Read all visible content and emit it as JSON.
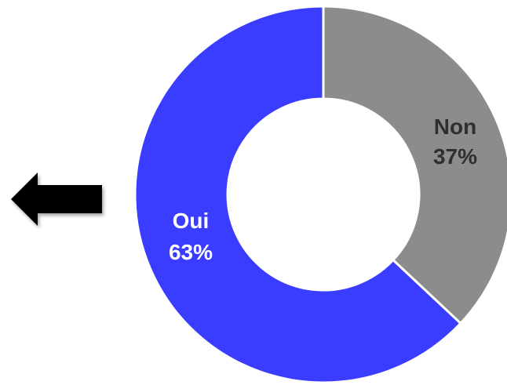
{
  "chart_data": {
    "type": "pie",
    "variant": "donut",
    "categories": [
      "Oui",
      "Non"
    ],
    "values": [
      63,
      37
    ],
    "value_labels": [
      "63%",
      "37%"
    ],
    "colors": [
      "#3a3cff",
      "#8c8c8c"
    ],
    "label_colors": [
      "#ffffff",
      "#2f2f2f"
    ],
    "slice_border_color": "#ffffff",
    "legend": "none",
    "title": ""
  },
  "decorations": {
    "arrow_icon": "left-arrow-icon",
    "arrow_color": "#000000"
  }
}
